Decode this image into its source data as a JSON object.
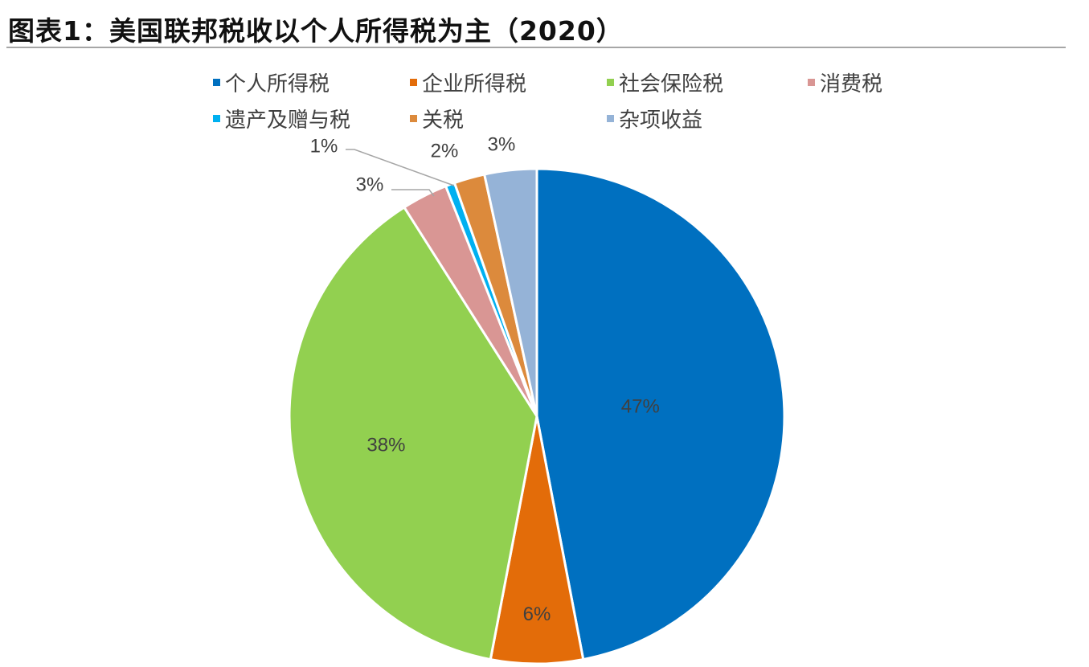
{
  "title": "图表1：美国联邦税收以个人所得税为主（2020）",
  "chart_data": {
    "type": "pie",
    "title": "图表1：美国联邦税收以个人所得税为主（2020）",
    "start_angle_deg": 0,
    "direction": "clockwise",
    "legend_position": "top",
    "slices": [
      {
        "name": "个人所得税",
        "value": 47,
        "label": "47%",
        "color": "#0070c0"
      },
      {
        "name": "企业所得税",
        "value": 6,
        "label": "6%",
        "color": "#e36c09"
      },
      {
        "name": "社会保险税",
        "value": 38,
        "label": "38%",
        "color": "#92d050"
      },
      {
        "name": "消费税",
        "value": 3,
        "label": "3%",
        "color": "#d99694"
      },
      {
        "name": "遗产及赠与税",
        "value": 0.6,
        "label": "1%",
        "color": "#00b0f0"
      },
      {
        "name": "关税",
        "value": 2,
        "label": "2%",
        "color": "#dc8a3c"
      },
      {
        "name": "杂项收益",
        "value": 3.4,
        "label": "3%",
        "color": "#95b3d7"
      }
    ],
    "legend_rows": [
      [
        "个人所得税",
        "企业所得税",
        "社会保险税",
        "消费税"
      ],
      [
        "遗产及赠与税",
        "关税",
        "杂项收益"
      ]
    ]
  }
}
